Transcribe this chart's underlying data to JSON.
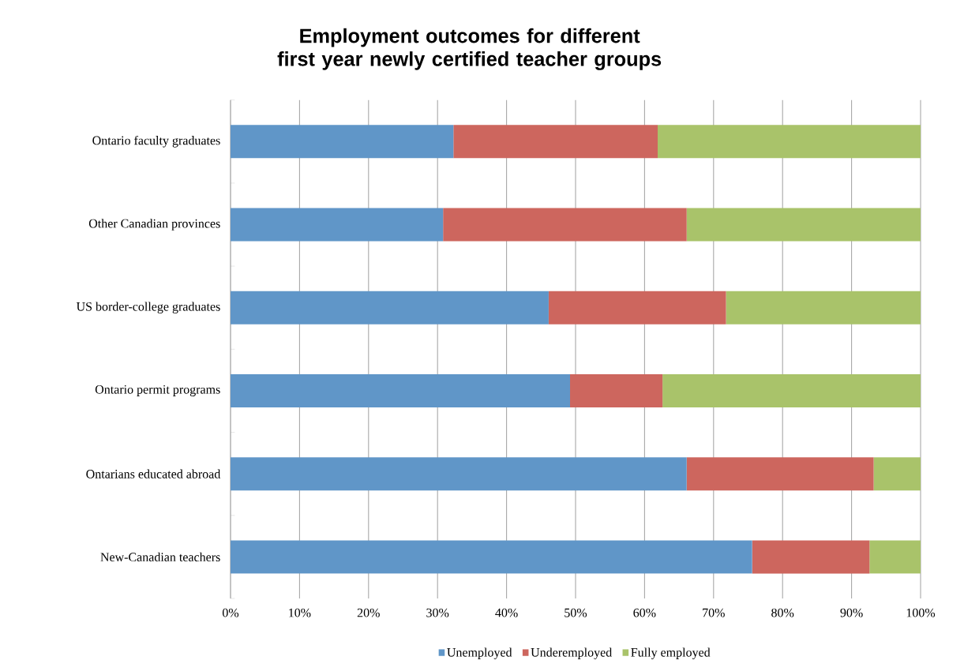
{
  "chart_data": {
    "type": "bar",
    "orientation": "horizontal",
    "stacked": true,
    "title": "Employment outcomes for different first year newly certified teacher groups",
    "categories": [
      "Ontario faculty graduates",
      "Other Canadian provinces",
      "US border-college graduates",
      "Ontario permit programs",
      "Ontarians educated abroad",
      "New-Canadian teachers"
    ],
    "series": [
      {
        "name": "Unemployed",
        "color": "#6096c8",
        "values": [
          32.3,
          30.8,
          46.1,
          49.2,
          66.1,
          75.6
        ]
      },
      {
        "name": "Underemployed",
        "color": "#cd665e",
        "values": [
          29.6,
          35.3,
          25.7,
          13.4,
          27.1,
          17.0
        ]
      },
      {
        "name": "Fully employed",
        "color": "#a9c36a",
        "values": [
          38.1,
          33.9,
          28.2,
          37.4,
          6.8,
          7.4
        ]
      }
    ],
    "xlim": [
      0,
      100
    ],
    "xticks": [
      {
        "value": 0,
        "label": "0%"
      },
      {
        "value": 10,
        "label": "10%"
      },
      {
        "value": 20,
        "label": "20%"
      },
      {
        "value": 30,
        "label": "30%"
      },
      {
        "value": 40,
        "label": "40%"
      },
      {
        "value": 50,
        "label": "50%"
      },
      {
        "value": 60,
        "label": "60%"
      },
      {
        "value": 70,
        "label": "70%"
      },
      {
        "value": 80,
        "label": "80%"
      },
      {
        "value": 90,
        "label": "90%"
      },
      {
        "value": 100,
        "label": "100%"
      }
    ],
    "grid": "x",
    "legend": "bottom"
  }
}
